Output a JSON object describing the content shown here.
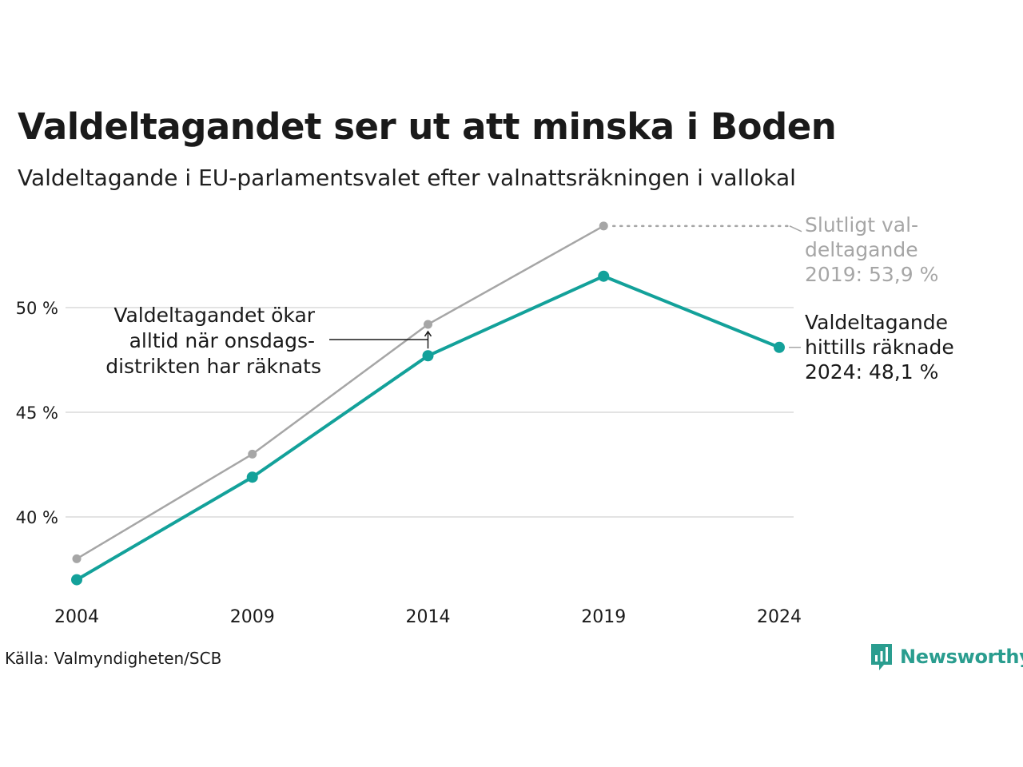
{
  "title": "Valdeltagandet ser ut att minska i Boden",
  "subtitle": "Valdeltagande i EU-parlamentsvalet efter valnattsräkningen i vallokal",
  "source": "Källa: Valmyndigheten/SCB",
  "logo": {
    "text": "Newsworthy",
    "icon": "bar-chart-speech-bubble-icon",
    "color": "#2a9d8f"
  },
  "chart_data": {
    "type": "line",
    "categories": [
      "2004",
      "2009",
      "2014",
      "2019",
      "2024"
    ],
    "yticks": [
      40,
      45,
      50
    ],
    "ytick_labels": [
      "40 %",
      "45 %",
      "50 %"
    ],
    "ylim": [
      35.5,
      55
    ],
    "grid": "horizontal",
    "series": [
      {
        "key": "final",
        "color": "#a6a6a6",
        "values": [
          38.0,
          43.0,
          49.2,
          53.9,
          null
        ]
      },
      {
        "key": "preliminary",
        "color": "#13a19a",
        "values": [
          37.0,
          41.9,
          47.7,
          51.5,
          48.1
        ]
      }
    ],
    "annotations": {
      "final": [
        "Slutligt val-",
        "deltagande",
        "2019: 53,9 %"
      ],
      "preliminary": [
        "Valdeltagande",
        "hittills räknade",
        "2024: 48,1 %"
      ],
      "note": [
        "Valdeltagandet ökar",
        "alltid när onsdags-",
        "distrikten har räknats"
      ]
    }
  }
}
